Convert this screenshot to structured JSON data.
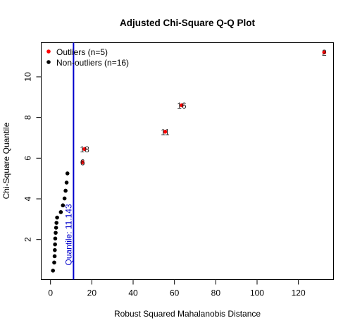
{
  "chart_data": {
    "type": "scatter",
    "title": "Adjusted Chi-Square Q-Q Plot",
    "xlabel": "Robust Squared Mahalanobis Distance",
    "ylabel": "Chi-Square Quantile",
    "xlim": [
      -4.5,
      137
    ],
    "ylim": [
      0.03,
      11.68
    ],
    "xticks": [
      0,
      20,
      40,
      60,
      80,
      100,
      120
    ],
    "yticks": [
      2,
      4,
      6,
      8,
      10
    ],
    "grid": false,
    "legend": {
      "position": "top-left",
      "entries": [
        {
          "label": "Outliers (n=5)",
          "color": "#ff0000"
        },
        {
          "label": "Non-outliers (n=16)",
          "color": "#000000"
        }
      ]
    },
    "series": [
      {
        "name": "Outliers (n=5)",
        "color": "#ff0000",
        "points": [
          {
            "x": 15.5,
            "y": 5.8,
            "label": "6"
          },
          {
            "x": 16.5,
            "y": 6.45,
            "label": "18"
          },
          {
            "x": 55.5,
            "y": 7.3,
            "label": "11"
          },
          {
            "x": 63.5,
            "y": 8.6,
            "label": "16"
          },
          {
            "x": 132.5,
            "y": 11.2,
            "label": "2"
          }
        ]
      },
      {
        "name": "Non-outliers (n=16)",
        "color": "#000000",
        "points": [
          {
            "x": 1.2,
            "y": 0.47
          },
          {
            "x": 1.8,
            "y": 0.87
          },
          {
            "x": 2.0,
            "y": 1.18
          },
          {
            "x": 2.1,
            "y": 1.48
          },
          {
            "x": 2.2,
            "y": 1.76
          },
          {
            "x": 2.3,
            "y": 2.05
          },
          {
            "x": 2.5,
            "y": 2.33
          },
          {
            "x": 2.7,
            "y": 2.58
          },
          {
            "x": 2.9,
            "y": 2.82
          },
          {
            "x": 3.2,
            "y": 3.08
          },
          {
            "x": 5.0,
            "y": 3.35
          },
          {
            "x": 6.0,
            "y": 3.68
          },
          {
            "x": 6.8,
            "y": 4.02
          },
          {
            "x": 7.3,
            "y": 4.4
          },
          {
            "x": 7.8,
            "y": 4.8
          },
          {
            "x": 8.2,
            "y": 5.25
          }
        ]
      }
    ],
    "cutoff": {
      "x": 11.143,
      "label": "Quantile: 11.143",
      "color": "#0000cc"
    }
  }
}
